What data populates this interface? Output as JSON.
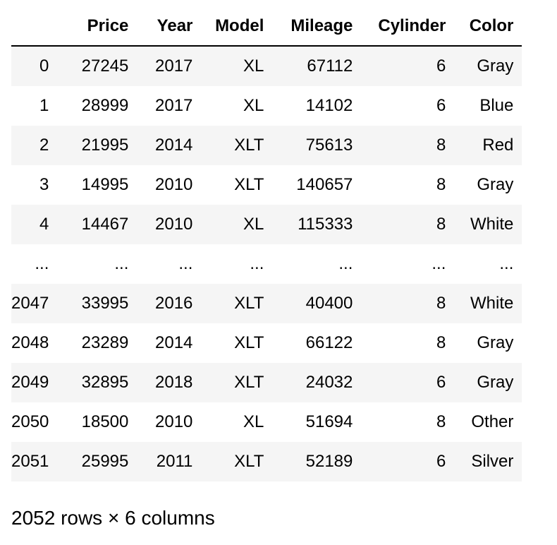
{
  "table": {
    "columns": [
      "",
      "Price",
      "Year",
      "Model",
      "Mileage",
      "Cylinder",
      "Color"
    ],
    "rows": [
      [
        "0",
        "27245",
        "2017",
        "XL",
        "67112",
        "6",
        "Gray"
      ],
      [
        "1",
        "28999",
        "2017",
        "XL",
        "14102",
        "6",
        "Blue"
      ],
      [
        "2",
        "21995",
        "2014",
        "XLT",
        "75613",
        "8",
        "Red"
      ],
      [
        "3",
        "14995",
        "2010",
        "XLT",
        "140657",
        "8",
        "Gray"
      ],
      [
        "4",
        "14467",
        "2010",
        "XL",
        "115333",
        "8",
        "White"
      ],
      [
        "...",
        "...",
        "...",
        "...",
        "...",
        "...",
        "..."
      ],
      [
        "2047",
        "33995",
        "2016",
        "XLT",
        "40400",
        "8",
        "White"
      ],
      [
        "2048",
        "23289",
        "2014",
        "XLT",
        "66122",
        "8",
        "Gray"
      ],
      [
        "2049",
        "32895",
        "2018",
        "XLT",
        "24032",
        "6",
        "Gray"
      ],
      [
        "2050",
        "18500",
        "2010",
        "XL",
        "51694",
        "8",
        "Other"
      ],
      [
        "2051",
        "25995",
        "2011",
        "XLT",
        "52189",
        "6",
        "Silver"
      ]
    ]
  },
  "footer": {
    "shape_text": "2052 rows × 6 columns"
  }
}
